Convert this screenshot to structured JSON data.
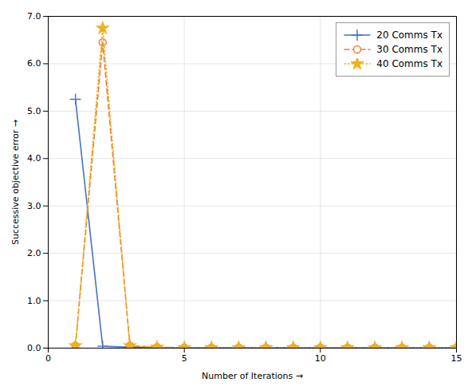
{
  "chart_data": {
    "type": "line",
    "xlabel": "Number of Iterations",
    "ylabel": "Successive objective error",
    "x": [
      1,
      2,
      3,
      4,
      5,
      6,
      7,
      8,
      9,
      10,
      11,
      12,
      13,
      14,
      15
    ],
    "series": [
      {
        "name": "20 Comms Tx",
        "color": "#4472C4",
        "marker": "plus",
        "line_style": "solid",
        "values": [
          5.25,
          0.04,
          0.02,
          0.01,
          0.01,
          0.01,
          0.01,
          0.01,
          0.01,
          0.01,
          0.01,
          0.01,
          0.01,
          0.01,
          0.01
        ]
      },
      {
        "name": "30 Comms Tx",
        "color": "#ED7D31",
        "marker": "circle",
        "line_style": "dashed",
        "values": [
          0.05,
          6.45,
          0.05,
          0.02,
          0.01,
          0.01,
          0.01,
          0.01,
          0.01,
          0.01,
          0.01,
          0.01,
          0.01,
          0.01,
          0.01
        ]
      },
      {
        "name": "40 Comms Tx",
        "color": "#EDB120",
        "marker": "star",
        "line_style": "dotted",
        "values": [
          0.05,
          6.75,
          0.05,
          0.02,
          0.01,
          0.01,
          0.01,
          0.01,
          0.01,
          0.01,
          0.01,
          0.01,
          0.01,
          0.01,
          0.01
        ]
      }
    ],
    "xlim": [
      0,
      15
    ],
    "ylim": [
      0,
      7
    ],
    "xticks": [
      0,
      5,
      10,
      15
    ],
    "yticks": [
      0,
      1,
      2,
      3,
      4,
      5,
      6,
      7
    ],
    "grid": true,
    "legend": "upper right"
  }
}
